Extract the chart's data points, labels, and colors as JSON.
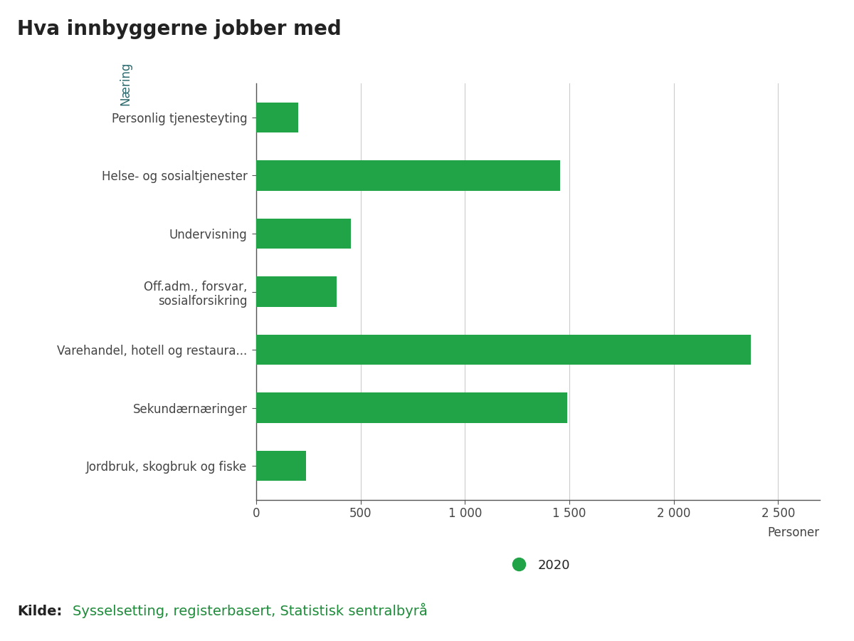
{
  "title": "Hva innbyggerne jobber med",
  "ylabel": "Næring",
  "xlabel": "Personer",
  "background_color": "#ffffff",
  "bar_color": "#21a347",
  "ylabel_color": "#2d6b6e",
  "categories": [
    "Jordbruk, skogbruk og fiske",
    "Sekundærnæringer",
    "Varehandel, hotell og restaura...",
    "Off.adm., forsvar,\nsosialforsikring",
    "Undervisning",
    "Helse- og sosialtjenester",
    "Personlig tjenesteyting"
  ],
  "values": [
    240,
    1490,
    2370,
    385,
    455,
    1455,
    200
  ],
  "xlim": [
    0,
    2700
  ],
  "xticks": [
    0,
    500,
    1000,
    1500,
    2000,
    2500
  ],
  "xtick_labels": [
    "0",
    "500",
    "1 000",
    "1 500",
    "2 000",
    "2 500"
  ],
  "legend_label": "2020",
  "source_label_bold": "Kilde:",
  "source_label_link": "Sysselsetting, registerbasert, Statistisk sentralbyrå",
  "source_color": "#1e8c3a",
  "title_fontsize": 20,
  "axis_label_fontsize": 12,
  "tick_fontsize": 12,
  "legend_fontsize": 13,
  "source_fontsize": 14
}
